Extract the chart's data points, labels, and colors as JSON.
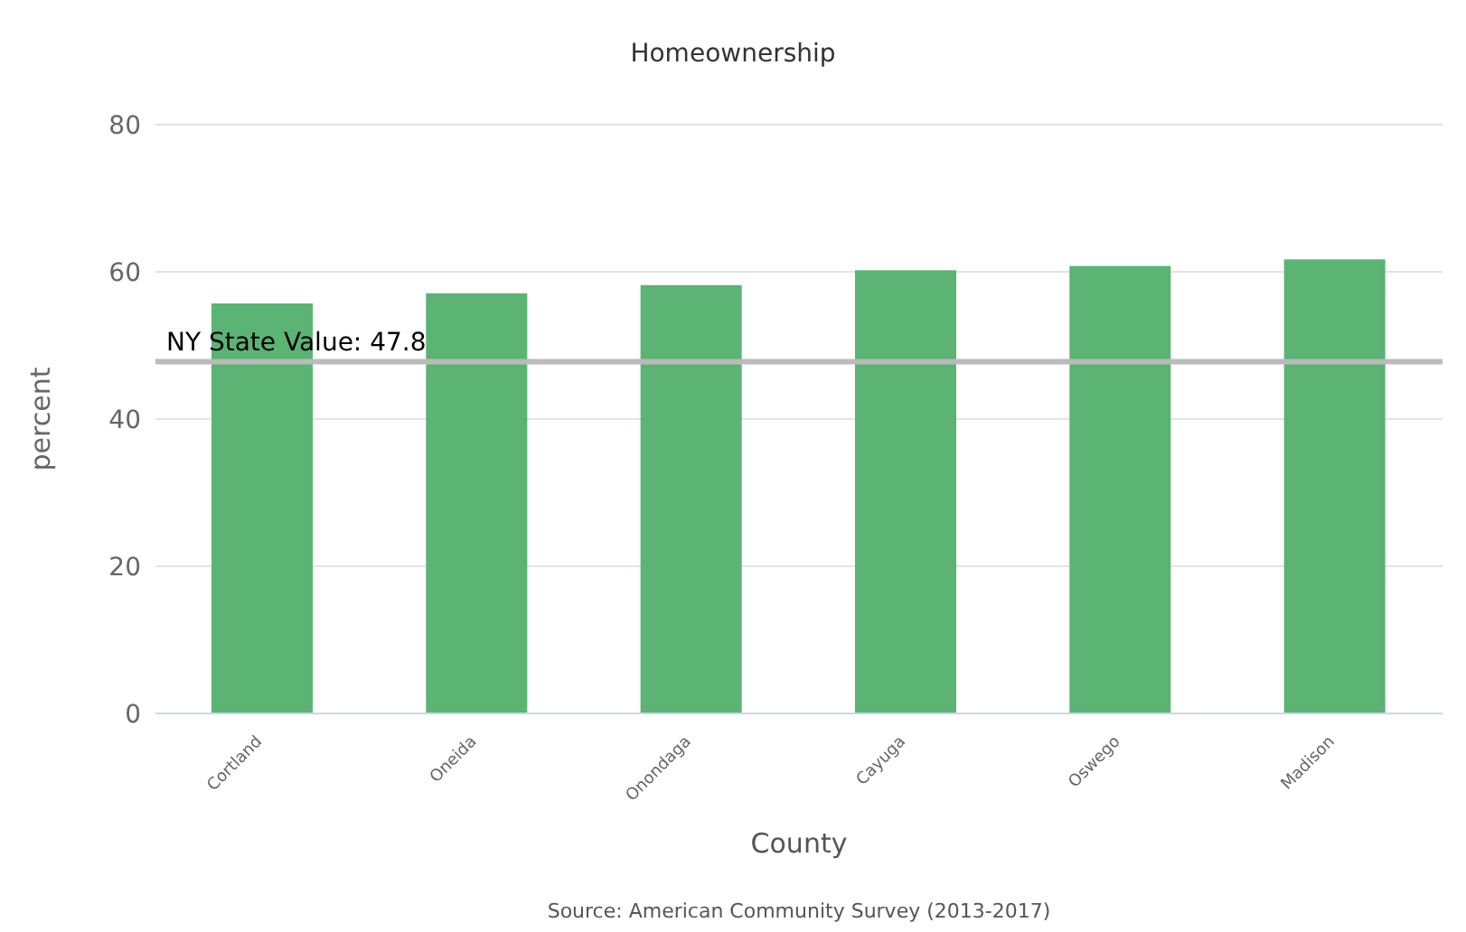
{
  "chart_data": {
    "type": "bar",
    "title": "Homeownership",
    "xlabel": "County",
    "ylabel": "percent",
    "categories": [
      "Cortland",
      "Oneida",
      "Onondaga",
      "Cayuga",
      "Oswego",
      "Madison"
    ],
    "values": [
      55.7,
      57.1,
      58.2,
      60.2,
      60.8,
      61.7
    ],
    "color": "#5bb374",
    "ylim": [
      0,
      80
    ],
    "yticks": [
      0,
      20,
      40,
      60,
      80
    ],
    "grid": "y",
    "ref_lines": [
      {
        "axis": "y",
        "value": 47.8,
        "label": "NY State Value: 47.8",
        "color": "#bbbbbb"
      }
    ],
    "annotations": [
      "Source: American Community Survey (2013-2017)"
    ]
  }
}
